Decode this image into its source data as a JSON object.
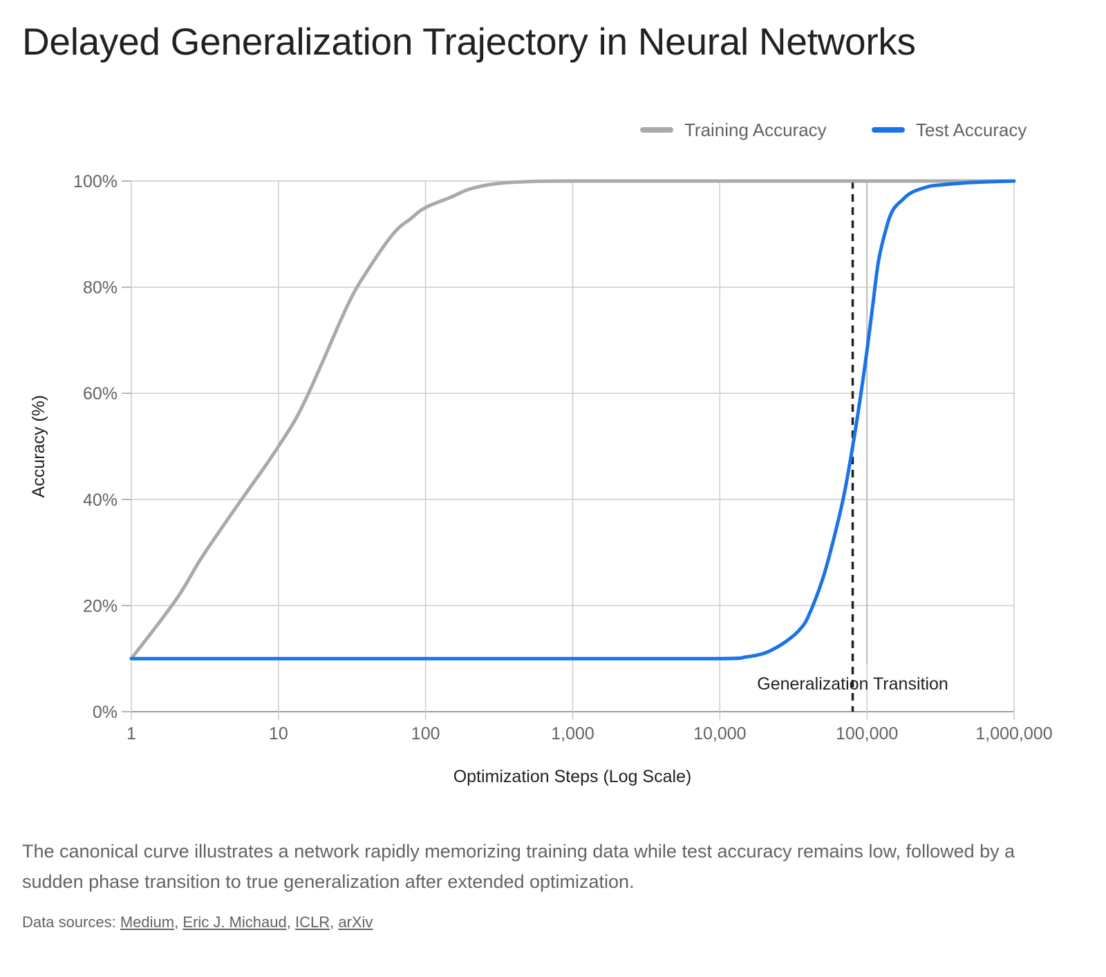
{
  "page": {
    "title": "Delayed Generalization Trajectory in Neural Networks",
    "description": "The canonical curve illustrates a network rapidly memorizing training data while test accuracy remains low, followed by a sudden phase transition to true generalization after extended optimization.",
    "sources_prefix": "Data sources: ",
    "sources": [
      "Medium",
      "Eric J. Michaud",
      "ICLR",
      "arXiv"
    ]
  },
  "chart_data": {
    "type": "line",
    "title": "Delayed Generalization Trajectory in Neural Networks",
    "xlabel": "Optimization Steps (Log Scale)",
    "ylabel": "Accuracy (%)",
    "x_scale": "log",
    "xlim": [
      1,
      1000000
    ],
    "ylim": [
      0,
      100
    ],
    "x_ticks": [
      1,
      10,
      100,
      1000,
      10000,
      100000,
      1000000
    ],
    "x_tick_labels": [
      "1",
      "10",
      "100",
      "1,000",
      "10,000",
      "100,000",
      "1,000,000"
    ],
    "y_ticks": [
      0,
      20,
      40,
      60,
      80,
      100
    ],
    "y_tick_labels": [
      "0%",
      "20%",
      "40%",
      "60%",
      "80%",
      "100%"
    ],
    "grid": true,
    "legend_position": "top-right",
    "series": [
      {
        "name": "Training Accuracy",
        "color": "#aaaaaa",
        "x": [
          1,
          2,
          3,
          5,
          8,
          10,
          13,
          16,
          20,
          30,
          40,
          60,
          80,
          100,
          150,
          200,
          300,
          500,
          1000,
          10000,
          100000,
          1000000
        ],
        "y": [
          10,
          21,
          29,
          38,
          46,
          50,
          55,
          60,
          66,
          77,
          83,
          90,
          93,
          95,
          97,
          98.5,
          99.5,
          99.9,
          100,
          100,
          100,
          100
        ]
      },
      {
        "name": "Test Accuracy",
        "color": "#1a73e8",
        "x": [
          1,
          10,
          100,
          1000,
          10000,
          15000,
          20000,
          25000,
          30000,
          35000,
          40000,
          50000,
          60000,
          70000,
          80000,
          90000,
          100000,
          110000,
          120000,
          135000,
          150000,
          175000,
          200000,
          250000,
          300000,
          500000,
          1000000
        ],
        "y": [
          10,
          10,
          10,
          10,
          10,
          10.3,
          11,
          12.3,
          13.8,
          15.5,
          18,
          25,
          33,
          41,
          50,
          59,
          68,
          77,
          85,
          91,
          94.5,
          96.5,
          97.8,
          98.8,
          99.2,
          99.7,
          100
        ]
      }
    ],
    "annotations": [
      {
        "type": "vline",
        "x": 80000,
        "label": "Generalization Transition",
        "style": "dashed",
        "color": "#202124"
      },
      {
        "type": "vline",
        "x": 100000,
        "label": "",
        "style": "solid",
        "color": "#bbbbbb"
      }
    ]
  }
}
